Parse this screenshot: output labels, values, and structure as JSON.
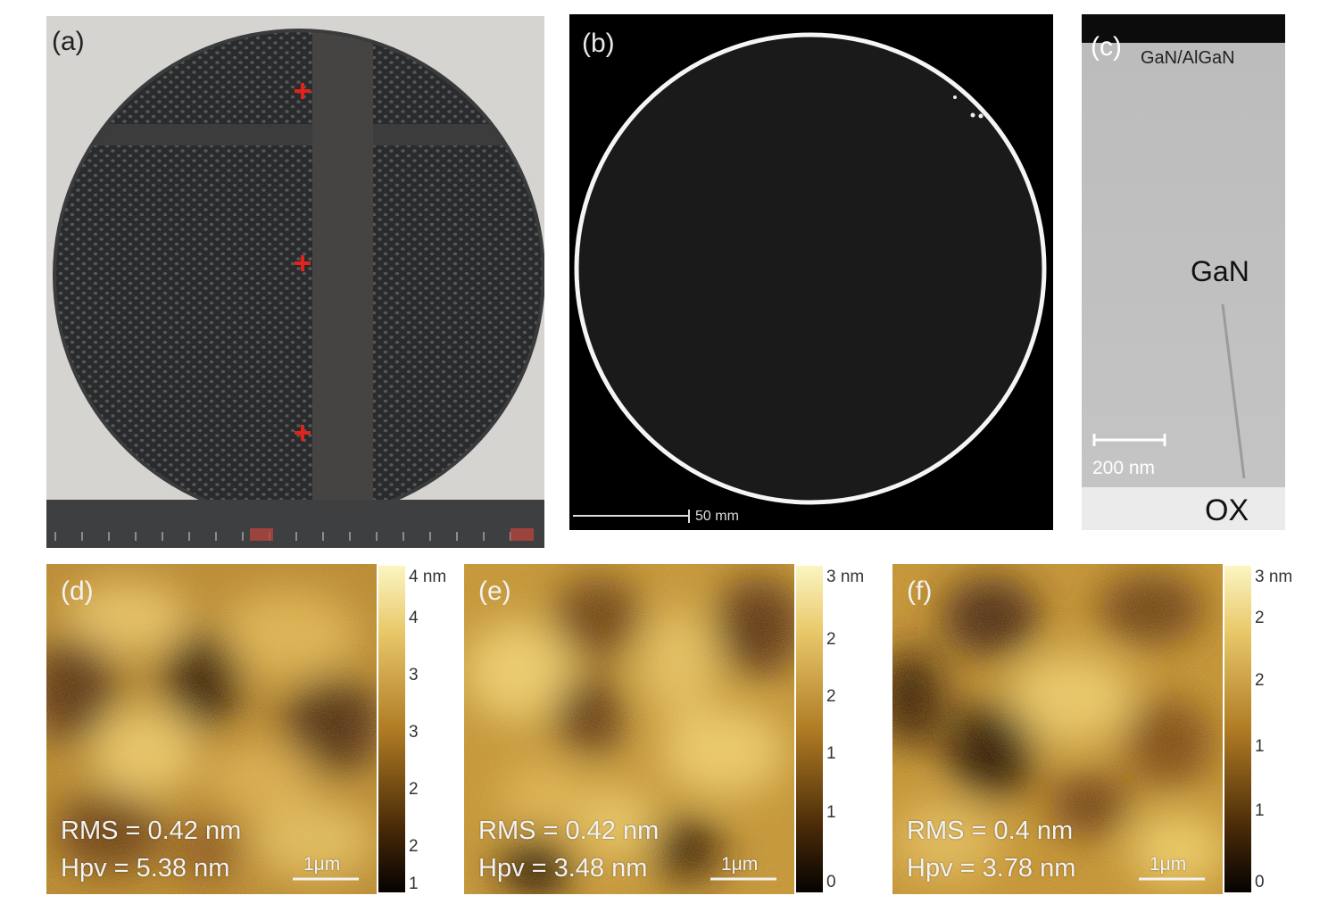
{
  "panels": {
    "a": {
      "label": "(a)"
    },
    "b": {
      "label": "(b)",
      "scale_bar": "50 mm"
    },
    "c": {
      "label": "(c)",
      "layer_top": "GaN/AlGaN",
      "layer_mid": "GaN",
      "layer_bottom": "OX",
      "scale_bar": "200 nm"
    },
    "d": {
      "label": "(d)",
      "rms": "RMS = 0.42 nm",
      "hpv": "Hpv = 5.38 nm",
      "scale": "1μm",
      "colorbar": {
        "max_label": "4 nm",
        "ticks": [
          "4",
          "3",
          "3",
          "2",
          "2",
          "1"
        ]
      }
    },
    "e": {
      "label": "(e)",
      "rms": "RMS = 0.42 nm",
      "hpv": "Hpv = 3.48 nm",
      "scale": "1μm",
      "colorbar": {
        "max_label": "3 nm",
        "ticks": [
          "2",
          "2",
          "1",
          "1",
          "0"
        ]
      }
    },
    "f": {
      "label": "(f)",
      "rms": "RMS = 0.4 nm",
      "hpv": "Hpv = 3.78 nm",
      "scale": "1μm",
      "colorbar": {
        "max_label": "3 nm",
        "ticks": [
          "2",
          "2",
          "1",
          "1",
          "0"
        ]
      }
    }
  },
  "colors": {
    "afm_light": "#e0b657",
    "afm_mid": "#a8731f",
    "afm_dark": "#2a1404",
    "marker_red": "#e0231b"
  }
}
